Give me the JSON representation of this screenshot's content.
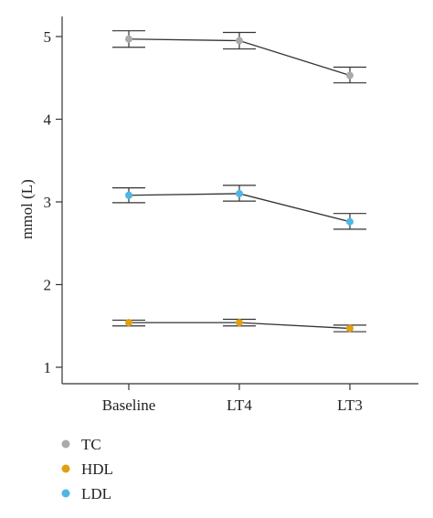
{
  "chart_data": {
    "type": "line",
    "title": "",
    "xlabel": "",
    "ylabel": "mmol (L)",
    "categories": [
      "Baseline",
      "LT4",
      "LT3"
    ],
    "ylim": [
      0.8,
      5.3
    ],
    "yticks": [
      "1",
      "2",
      "3",
      "4",
      "5"
    ],
    "legend_position": "bottom-left",
    "grid": false,
    "series": [
      {
        "name": "TC",
        "color": "#aaaaaa",
        "values": [
          4.97,
          4.95,
          4.53
        ],
        "error_low": [
          4.87,
          4.85,
          4.44
        ],
        "error_high": [
          5.07,
          5.05,
          4.63
        ]
      },
      {
        "name": "HDL",
        "color": "#e0a010",
        "values": [
          1.54,
          1.54,
          1.47
        ],
        "error_low": [
          1.5,
          1.5,
          1.43
        ],
        "error_high": [
          1.57,
          1.58,
          1.51
        ]
      },
      {
        "name": "LDL",
        "color": "#4fb6e6",
        "values": [
          3.08,
          3.1,
          2.76
        ],
        "error_low": [
          2.99,
          3.01,
          2.67
        ],
        "error_high": [
          3.17,
          3.2,
          2.86
        ]
      }
    ]
  }
}
